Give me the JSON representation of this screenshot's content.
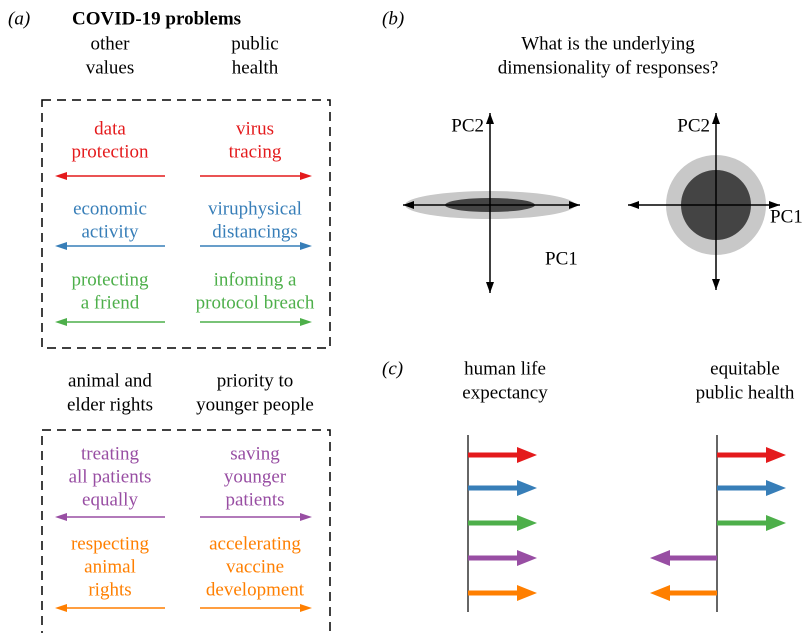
{
  "panel_a": {
    "label": "(a)",
    "title": "COVID-19 problems",
    "groups": [
      {
        "headers": [
          [
            "other",
            "values"
          ],
          [
            "public",
            "health"
          ]
        ],
        "items": [
          {
            "color": "#e41a1c",
            "left": [
              "data",
              "protection"
            ],
            "right": [
              "virus",
              "tracing"
            ]
          },
          {
            "color": "#377eb8",
            "left": [
              "economic",
              "activity"
            ],
            "right": [
              "viruphysical",
              "distancings"
            ]
          },
          {
            "color": "#4daf4a",
            "left": [
              "protecting",
              "a friend"
            ],
            "right": [
              "infoming a",
              "protocol breach"
            ]
          }
        ]
      },
      {
        "headers": [
          [
            "animal and",
            "elder rights"
          ],
          [
            "priority to",
            "younger people"
          ]
        ],
        "items": [
          {
            "color": "#984ea3",
            "left": [
              "treating",
              "all patients",
              "equally"
            ],
            "right": [
              "saving",
              "younger",
              "patients"
            ]
          },
          {
            "color": "#ff7f00",
            "left": [
              "respecting",
              "animal",
              "rights"
            ],
            "right": [
              "accelerating",
              "vaccine",
              "development"
            ]
          }
        ]
      }
    ]
  },
  "panel_b": {
    "label": "(b)",
    "question": [
      "What is the underlying",
      "dimensionality of responses?"
    ],
    "axis_y": "PC2",
    "axis_x": "PC1"
  },
  "panel_c": {
    "label": "(c)",
    "headers": [
      [
        "human life",
        "expectancy"
      ],
      [
        "equitable",
        "public health"
      ]
    ]
  }
}
